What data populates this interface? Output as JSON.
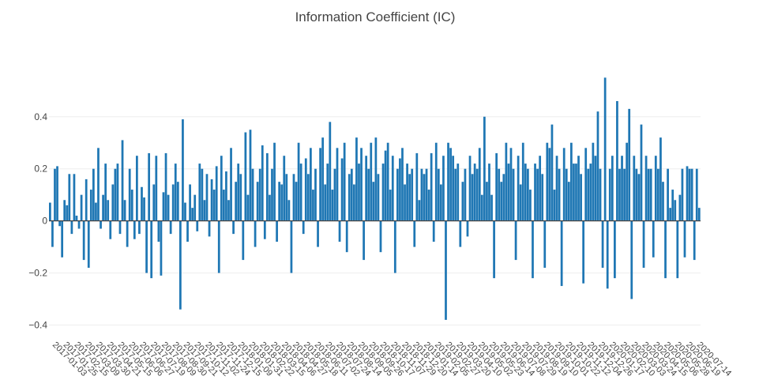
{
  "chart_data": {
    "type": "bar",
    "title": "Information Coefficient (IC)",
    "xlabel": "",
    "ylabel": "",
    "ylim": [
      -0.45,
      0.56
    ],
    "yticks": [
      -0.4,
      -0.2,
      0,
      0.2,
      0.4
    ],
    "ytick_labels": [
      "−0.4",
      "−0.2",
      "0",
      "0.2",
      "0.4"
    ],
    "grid": true,
    "legend": "none",
    "bar_color": "#1f77b4",
    "start_date": "2017-01-03",
    "end_date": "2020-07-14",
    "x_tick_labels": [
      "2017-01-03",
      "2017-01-25",
      "2017-02-15",
      "2017-03-09",
      "2017-03-30",
      "2017-04-21",
      "2017-05-15",
      "2017-06-06",
      "2017-06-27",
      "2017-07-19",
      "2017-08-09",
      "2017-08-30",
      "2017-09-21",
      "2017-10-12",
      "2017-11-02",
      "2017-11-24",
      "2017-12-15",
      "2018-01-09",
      "2018-01-31",
      "2018-02-22",
      "2018-03-15",
      "2018-04-06",
      "2018-04-27",
      "2018-05-18",
      "2018-06-11",
      "2018-07-02",
      "2018-07-24",
      "2018-08-14",
      "2018-09-05",
      "2018-09-26",
      "2018-10-17",
      "2018-11-07",
      "2018-11-29",
      "2018-12-20",
      "2019-01-14",
      "2019-02-05",
      "2019-02-27",
      "2019-03-20",
      "2019-04-10",
      "2019-05-02",
      "2019-05-23",
      "2019-06-14",
      "2019-07-08",
      "2019-07-29",
      "2019-08-19",
      "2019-09-10",
      "2019-10-01",
      "2019-10-22",
      "2019-11-12",
      "2019-12-04",
      "2019-12-26",
      "2020-01-17",
      "2020-02-10",
      "2020-03-03",
      "2020-03-24",
      "2020-04-15",
      "2020-05-06",
      "2020-05-28",
      "2020-06-19",
      "2020-07-14"
    ],
    "values": [
      0.07,
      -0.1,
      0.2,
      0.21,
      -0.02,
      -0.14,
      0.08,
      0.06,
      0.18,
      -0.05,
      0.18,
      0.02,
      -0.03,
      0.1,
      -0.15,
      0.16,
      -0.18,
      0.12,
      0.2,
      0.07,
      0.28,
      -0.03,
      0.1,
      0.22,
      0.08,
      -0.07,
      0.14,
      0.2,
      0.22,
      -0.05,
      0.31,
      0.08,
      -0.1,
      0.2,
      0.12,
      -0.07,
      0.25,
      -0.05,
      0.13,
      0.09,
      -0.2,
      0.26,
      -0.22,
      0.14,
      0.25,
      -0.08,
      -0.21,
      0.11,
      0.26,
      0.1,
      -0.05,
      0.14,
      0.22,
      0.15,
      -0.34,
      0.39,
      0.07,
      -0.08,
      0.14,
      0.05,
      0.1,
      -0.04,
      0.22,
      0.2,
      0.08,
      0.18,
      -0.06,
      0.16,
      0.12,
      0.21,
      -0.2,
      0.25,
      0.12,
      0.19,
      0.08,
      0.28,
      -0.05,
      0.15,
      0.22,
      0.18,
      -0.15,
      0.34,
      0.1,
      0.35,
      0.2,
      -0.1,
      0.15,
      0.2,
      0.29,
      -0.07,
      0.26,
      0.1,
      0.2,
      0.3,
      -0.08,
      0.15,
      0.14,
      0.25,
      0.18,
      0.08,
      -0.2,
      0.18,
      0.15,
      0.3,
      0.22,
      -0.05,
      0.24,
      0.18,
      0.28,
      0.12,
      0.2,
      -0.1,
      0.28,
      0.32,
      0.14,
      0.22,
      0.38,
      0.12,
      0.2,
      0.28,
      -0.08,
      0.24,
      0.3,
      -0.12,
      0.18,
      0.2,
      0.14,
      0.32,
      0.22,
      0.28,
      -0.15,
      0.25,
      0.2,
      0.3,
      0.15,
      0.32,
      0.18,
      -0.12,
      0.22,
      0.27,
      0.3,
      0.12,
      0.25,
      -0.2,
      0.2,
      0.24,
      0.28,
      0.14,
      0.22,
      0.18,
      0.2,
      -0.1,
      0.26,
      0.08,
      0.2,
      0.18,
      0.2,
      0.12,
      0.26,
      -0.08,
      0.3,
      0.2,
      0.14,
      0.25,
      -0.38,
      0.3,
      0.28,
      0.25,
      0.2,
      0.22,
      -0.1,
      0.15,
      0.2,
      -0.06,
      0.25,
      0.18,
      0.22,
      0.2,
      0.28,
      0.1,
      0.4,
      0.15,
      0.22,
      0.1,
      -0.22,
      0.26,
      0.2,
      0.15,
      0.18,
      0.3,
      0.22,
      0.28,
      0.2,
      -0.15,
      0.25,
      0.14,
      0.3,
      0.22,
      0.2,
      0.12,
      -0.22,
      0.22,
      0.2,
      0.25,
      0.18,
      -0.18,
      0.3,
      0.28,
      0.37,
      0.12,
      0.25,
      0.2,
      -0.25,
      0.28,
      0.2,
      0.15,
      0.3,
      0.22,
      0.22,
      0.25,
      0.18,
      -0.24,
      0.28,
      0.2,
      0.22,
      0.3,
      0.25,
      0.42,
      0.2,
      -0.18,
      0.55,
      -0.26,
      0.2,
      0.25,
      -0.22,
      0.46,
      0.2,
      0.25,
      0.2,
      0.3,
      0.43,
      -0.3,
      0.25,
      0.2,
      0.18,
      0.37,
      -0.18,
      0.25,
      0.2,
      0.2,
      -0.14,
      0.25,
      0.2,
      0.32,
      0.15,
      -0.22,
      0.2,
      0.05,
      0.12,
      0.08,
      -0.22,
      0.1,
      0.2,
      -0.14,
      0.21,
      0.2,
      0.2,
      -0.15,
      0.2,
      0.05
    ]
  }
}
